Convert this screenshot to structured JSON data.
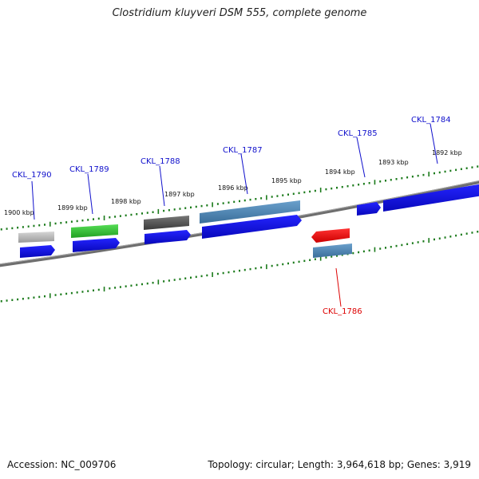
{
  "title": "Clostridium kluyveri DSM 555, complete genome",
  "footer": {
    "accession": "Accession: NC_009706",
    "summary": "Topology: circular; Length: 3,964,618 bp; Genes: 3,919"
  },
  "colors": {
    "backbone": "#7a7a7a",
    "ticks": "#1a7a1a",
    "label_forward": "#1010cc",
    "label_highlight": "#dd0000",
    "cds": "#0b0bdd",
    "steel": "#4a86b8",
    "grey_light": "#b8b8b8",
    "grey_dark": "#555555",
    "green": "#33bb33",
    "red": "#ee1111"
  },
  "scale_labels": [
    "1900 kbp",
    "1899 kbp",
    "1898 kbp",
    "1897 kbp",
    "1896 kbp",
    "1895 kbp",
    "1894 kbp",
    "1893 kbp",
    "1892 kbp"
  ],
  "genes": [
    {
      "label": "CKL_1790",
      "strand": "forward",
      "color": "label_forward"
    },
    {
      "label": "CKL_1789",
      "strand": "forward",
      "color": "label_forward"
    },
    {
      "label": "CKL_1788",
      "strand": "forward",
      "color": "label_forward"
    },
    {
      "label": "CKL_1787",
      "strand": "forward",
      "color": "label_forward"
    },
    {
      "label": "CKL_1786",
      "strand": "reverse",
      "color": "label_highlight"
    },
    {
      "label": "CKL_1785",
      "strand": "forward",
      "color": "label_forward"
    },
    {
      "label": "CKL_1784",
      "strand": "forward",
      "color": "label_forward"
    }
  ]
}
